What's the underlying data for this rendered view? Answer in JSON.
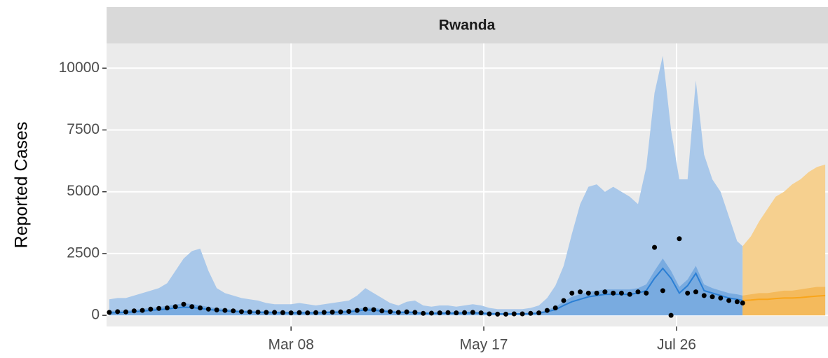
{
  "chart_data": {
    "type": "line",
    "facet": "Rwanda",
    "ylabel": "Reported Cases",
    "xlim": [
      -1,
      261
    ],
    "ylim": [
      -450,
      11000
    ],
    "yticks": [
      0,
      2500,
      5000,
      7500,
      10000
    ],
    "xticks": [
      {
        "value": 66,
        "label": "Mar 08"
      },
      {
        "value": 136,
        "label": "May 17"
      },
      {
        "value": 206,
        "label": "Jul 26"
      }
    ],
    "grid": true,
    "fit": {
      "x": [
        0,
        3,
        6,
        9,
        12,
        15,
        18,
        21,
        24,
        27,
        30,
        33,
        36,
        39,
        42,
        45,
        48,
        51,
        54,
        57,
        60,
        63,
        66,
        69,
        72,
        75,
        78,
        81,
        84,
        87,
        90,
        93,
        96,
        99,
        102,
        105,
        108,
        111,
        114,
        117,
        120,
        123,
        126,
        129,
        132,
        135,
        138,
        141,
        144,
        147,
        150,
        153,
        156,
        159,
        162,
        165,
        168,
        171,
        174,
        177,
        180,
        183,
        186,
        189,
        192,
        195,
        198,
        201,
        204,
        207,
        210,
        213,
        216,
        219,
        222,
        225,
        228,
        230
      ],
      "median": [
        100,
        110,
        120,
        140,
        170,
        200,
        230,
        260,
        300,
        330,
        320,
        280,
        240,
        200,
        180,
        160,
        140,
        130,
        120,
        110,
        110,
        100,
        100,
        100,
        100,
        100,
        110,
        120,
        130,
        140,
        180,
        220,
        210,
        170,
        140,
        110,
        120,
        110,
        80,
        80,
        90,
        90,
        90,
        100,
        100,
        90,
        70,
        60,
        55,
        60,
        60,
        70,
        90,
        150,
        230,
        400,
        550,
        650,
        750,
        800,
        850,
        850,
        850,
        850,
        900,
        1000,
        1500,
        1900,
        1500,
        900,
        1200,
        1700,
        1000,
        900,
        800,
        700,
        650,
        600
      ],
      "upper50": [
        180,
        190,
        200,
        220,
        260,
        300,
        340,
        380,
        440,
        480,
        460,
        400,
        340,
        290,
        260,
        230,
        200,
        190,
        180,
        170,
        160,
        150,
        150,
        150,
        150,
        150,
        160,
        180,
        190,
        200,
        260,
        320,
        300,
        250,
        200,
        160,
        180,
        160,
        120,
        120,
        130,
        130,
        130,
        150,
        150,
        130,
        100,
        90,
        80,
        90,
        90,
        100,
        130,
        220,
        340,
        560,
        750,
        850,
        950,
        1000,
        1050,
        1050,
        1050,
        1050,
        1100,
        1250,
        1800,
        2300,
        1800,
        1150,
        1450,
        2000,
        1250,
        1100,
        1000,
        900,
        850,
        800
      ],
      "upper90": [
        650,
        700,
        700,
        800,
        900,
        1000,
        1100,
        1300,
        1800,
        2300,
        2600,
        2700,
        1800,
        1100,
        900,
        800,
        700,
        650,
        600,
        500,
        450,
        450,
        450,
        500,
        450,
        400,
        450,
        500,
        550,
        600,
        800,
        1100,
        900,
        700,
        500,
        400,
        550,
        600,
        400,
        350,
        400,
        400,
        350,
        400,
        450,
        400,
        300,
        250,
        250,
        250,
        250,
        300,
        400,
        700,
        1200,
        2000,
        3300,
        4500,
        5200,
        5300,
        5000,
        5200,
        5000,
        4800,
        4500,
        6000,
        9000,
        10500,
        7500,
        5500,
        5500,
        9500,
        6500,
        5500,
        5000,
        4000,
        3000,
        2800
      ],
      "color": "#2b7fd4",
      "band_color": "#a9c8ea",
      "inner_color": "#79abe0"
    },
    "observed": {
      "x": [
        0,
        3,
        6,
        9,
        12,
        15,
        18,
        21,
        24,
        27,
        30,
        33,
        36,
        39,
        42,
        45,
        48,
        51,
        54,
        57,
        60,
        63,
        66,
        69,
        72,
        75,
        78,
        81,
        84,
        87,
        90,
        93,
        96,
        99,
        102,
        105,
        108,
        111,
        114,
        117,
        120,
        123,
        126,
        129,
        132,
        135,
        138,
        141,
        144,
        147,
        150,
        153,
        156,
        159,
        162,
        165,
        168,
        171,
        174,
        177,
        180,
        183,
        186,
        189,
        192,
        195,
        198,
        201,
        204,
        207,
        210,
        213,
        216,
        219,
        222,
        225,
        228,
        230
      ],
      "values": [
        120,
        150,
        140,
        180,
        200,
        250,
        280,
        300,
        350,
        450,
        350,
        300,
        250,
        220,
        200,
        180,
        150,
        140,
        130,
        120,
        120,
        110,
        100,
        110,
        100,
        110,
        120,
        130,
        140,
        160,
        200,
        250,
        230,
        180,
        150,
        120,
        140,
        120,
        80,
        90,
        100,
        110,
        100,
        110,
        120,
        100,
        60,
        50,
        50,
        60,
        60,
        80,
        100,
        200,
        300,
        600,
        900,
        950,
        900,
        900,
        950,
        900,
        900,
        850,
        950,
        900,
        2750,
        1000,
        0,
        3100,
        900,
        950,
        800,
        750,
        700,
        600,
        550,
        500
      ],
      "color": "#000000"
    },
    "forecast": {
      "x": [
        230,
        233,
        236,
        239,
        242,
        245,
        248,
        251,
        254,
        257,
        260
      ],
      "median": [
        600,
        620,
        650,
        650,
        680,
        700,
        700,
        720,
        750,
        780,
        800
      ],
      "upper50": [
        800,
        850,
        900,
        900,
        950,
        1000,
        1000,
        1050,
        1100,
        1150,
        1150
      ],
      "upper90": [
        2800,
        3200,
        3800,
        4300,
        4800,
        5000,
        5300,
        5500,
        5800,
        6000,
        6100
      ],
      "color": "#f9a51a",
      "band_color": "#f6d08f",
      "inner_color": "#f4ba5c"
    }
  }
}
